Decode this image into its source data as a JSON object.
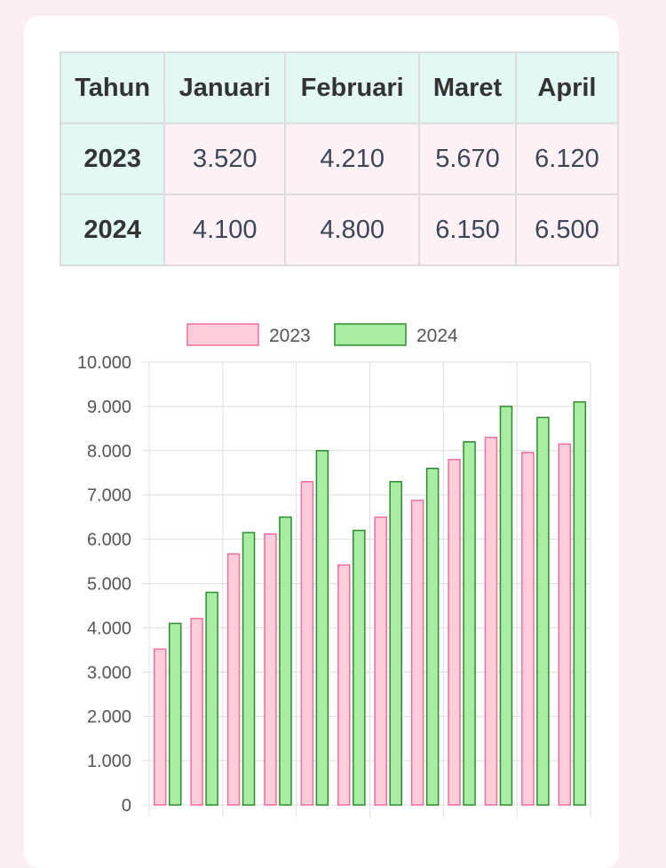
{
  "table": {
    "headers": [
      "Tahun",
      "Januari",
      "Februari",
      "Maret",
      "April"
    ],
    "rows": [
      {
        "year": "2023",
        "values": [
          "3.520",
          "4.210",
          "5.670",
          "6.120"
        ]
      },
      {
        "year": "2024",
        "values": [
          "4.100",
          "4.800",
          "6.150",
          "6.500"
        ]
      }
    ]
  },
  "chart_data": {
    "type": "bar",
    "legend_position": "top",
    "grid": true,
    "ylim": [
      0,
      10000
    ],
    "y_ticks": [
      "0",
      "1.000",
      "2.000",
      "3.000",
      "4.000",
      "5.000",
      "6.000",
      "7.000",
      "8.000",
      "9.000",
      "10.000"
    ],
    "colors": {
      "2023_fill": "#ffccd9",
      "2023_border": "#f06f9c",
      "2024_fill": "#a8eda3",
      "2024_border": "#2e8b2e",
      "grid": "#dedede"
    },
    "series": [
      {
        "name": "2023",
        "values": [
          3520,
          4210,
          5670,
          6120,
          7300,
          5420,
          6500,
          6880,
          7800,
          8300,
          7960,
          8150
        ]
      },
      {
        "name": "2024",
        "values": [
          4100,
          4800,
          6150,
          6500,
          8000,
          6200,
          7300,
          7600,
          8200,
          9000,
          8750,
          9100
        ]
      }
    ]
  }
}
